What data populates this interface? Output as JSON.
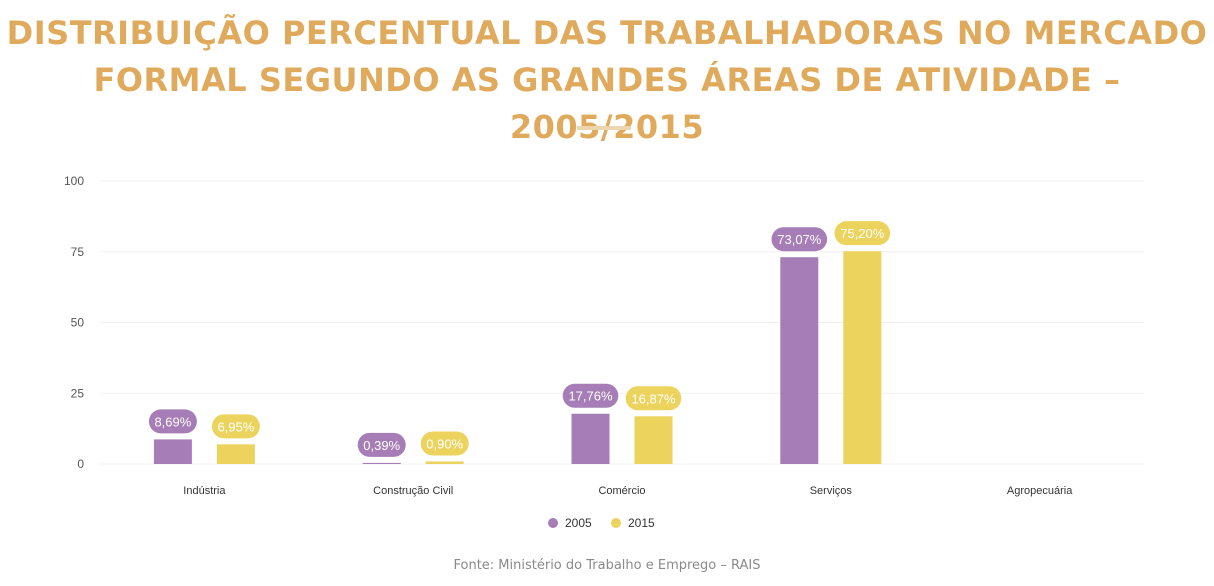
{
  "title": {
    "line1": "DISTRIBUIÇÃO PERCENTUAL DAS TRABALHADORAS NO MERCADO",
    "line2": "FORMAL SEGUNDO AS GRANDES ÁREAS DE ATIVIDADE – 2005/2015"
  },
  "source": "Fonte: Ministério do Trabalho e Emprego – RAIS",
  "colors": {
    "title": "#e0aa5c",
    "s2005": "#a67db6",
    "s2015": "#ecd35e",
    "divider": "#ecd6ad"
  },
  "chart_data": {
    "type": "bar",
    "categories": [
      "Indústria",
      "Construção Civil",
      "Comércio",
      "Serviços",
      "Agropecuária"
    ],
    "series": [
      {
        "name": "2005",
        "values": [
          8.69,
          0.39,
          17.76,
          73.07,
          null
        ],
        "labels": [
          "8,69%",
          "0,39%",
          "17,76%",
          "73,07%",
          ""
        ]
      },
      {
        "name": "2015",
        "values": [
          6.95,
          0.9,
          16.87,
          75.2,
          null
        ],
        "labels": [
          "6,95%",
          "0,90%",
          "16,87%",
          "75,20%",
          ""
        ]
      }
    ],
    "yticks": [
      "0",
      "25",
      "50",
      "75",
      "100"
    ],
    "ylim": [
      0,
      100
    ],
    "grid": true,
    "legend": "bottom-center"
  }
}
